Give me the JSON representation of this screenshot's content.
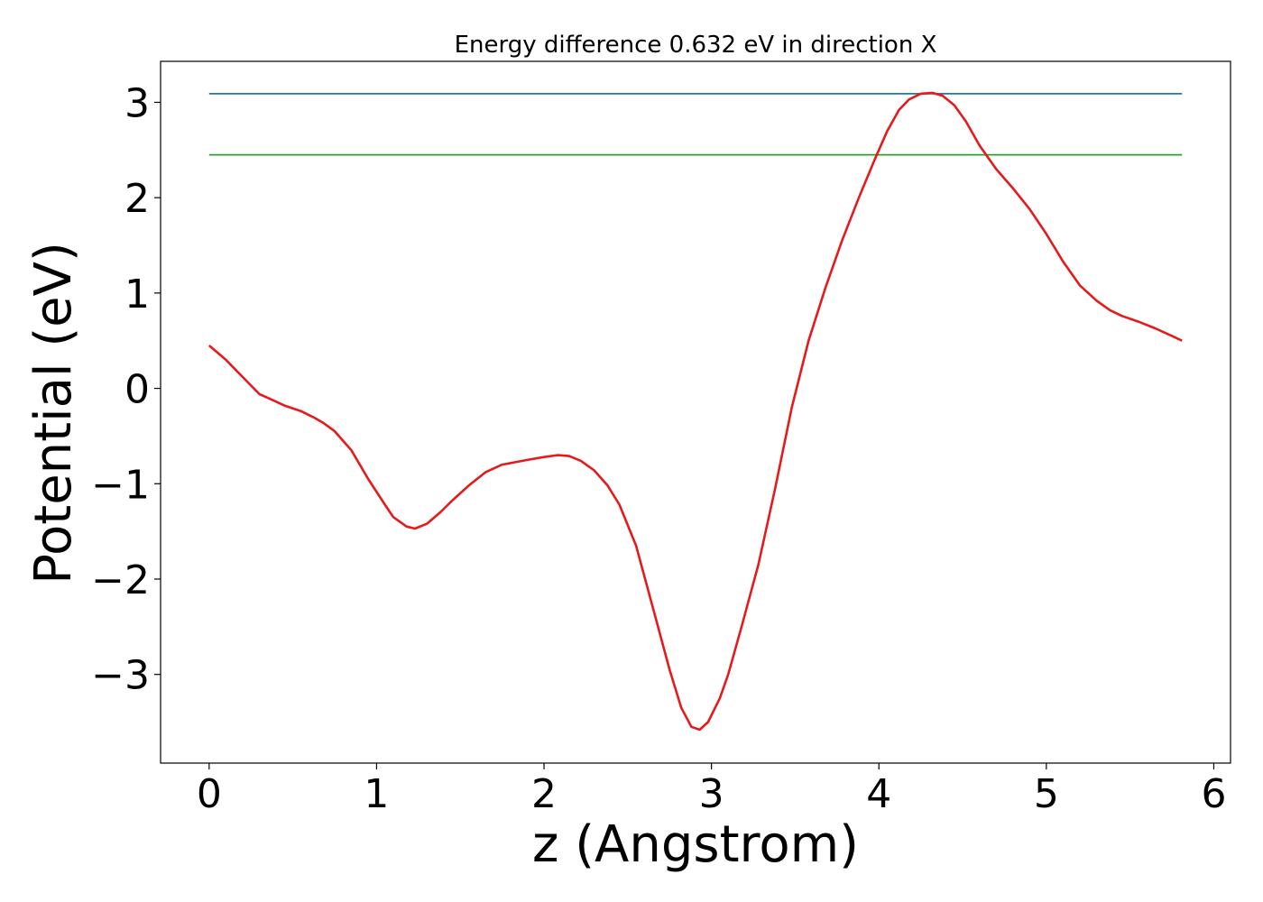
{
  "chart_data": {
    "type": "line",
    "title": "Energy difference 0.632 eV in direction X",
    "xlabel": "z (Angstrom)",
    "ylabel": "Potential (eV)",
    "xlim": [
      -0.29,
      6.1
    ],
    "ylim": [
      -3.93,
      3.43
    ],
    "xticks": [
      0,
      1,
      2,
      3,
      4,
      5,
      6
    ],
    "xtick_labels": [
      "0",
      "1",
      "2",
      "3",
      "4",
      "5",
      "6"
    ],
    "yticks": [
      3,
      2,
      1,
      0,
      -1,
      -2,
      -3
    ],
    "ytick_labels": [
      "3",
      "2",
      "1",
      "0",
      "−1",
      "−2",
      "−3"
    ],
    "grid": false,
    "legend": "none",
    "series": [
      {
        "color": "#1f77b4",
        "x": [
          0,
          5.81
        ],
        "y": [
          3.09,
          3.09
        ]
      },
      {
        "color": "#2ca02c",
        "x": [
          0,
          5.81
        ],
        "y": [
          2.45,
          2.45
        ]
      },
      {
        "color": "#e41a1c",
        "x": [
          0.0,
          0.1,
          0.2,
          0.3,
          0.35,
          0.45,
          0.55,
          0.62,
          0.68,
          0.75,
          0.85,
          0.95,
          1.05,
          1.1,
          1.18,
          1.23,
          1.3,
          1.38,
          1.45,
          1.55,
          1.65,
          1.75,
          1.9,
          2.0,
          2.08,
          2.15,
          2.22,
          2.3,
          2.38,
          2.45,
          2.55,
          2.65,
          2.75,
          2.82,
          2.88,
          2.93,
          2.98,
          3.05,
          3.1,
          3.18,
          3.28,
          3.38,
          3.48,
          3.58,
          3.68,
          3.78,
          3.88,
          3.98,
          4.05,
          4.12,
          4.18,
          4.25,
          4.32,
          4.38,
          4.45,
          4.52,
          4.6,
          4.7,
          4.8,
          4.9,
          5.0,
          5.1,
          5.2,
          5.3,
          5.38,
          5.45,
          5.55,
          5.65,
          5.75,
          5.81
        ],
        "y": [
          0.45,
          0.3,
          0.12,
          -0.06,
          -0.1,
          -0.18,
          -0.24,
          -0.3,
          -0.36,
          -0.45,
          -0.65,
          -0.95,
          -1.22,
          -1.35,
          -1.45,
          -1.47,
          -1.42,
          -1.3,
          -1.18,
          -1.02,
          -0.88,
          -0.8,
          -0.75,
          -0.72,
          -0.7,
          -0.71,
          -0.76,
          -0.86,
          -1.02,
          -1.22,
          -1.65,
          -2.3,
          -2.95,
          -3.35,
          -3.55,
          -3.58,
          -3.5,
          -3.25,
          -3.0,
          -2.5,
          -1.85,
          -1.05,
          -0.2,
          0.5,
          1.05,
          1.55,
          2.0,
          2.42,
          2.7,
          2.92,
          3.03,
          3.09,
          3.1,
          3.07,
          2.97,
          2.8,
          2.55,
          2.3,
          2.1,
          1.88,
          1.62,
          1.33,
          1.08,
          0.92,
          0.82,
          0.76,
          0.7,
          0.63,
          0.55,
          0.5
        ]
      }
    ]
  }
}
